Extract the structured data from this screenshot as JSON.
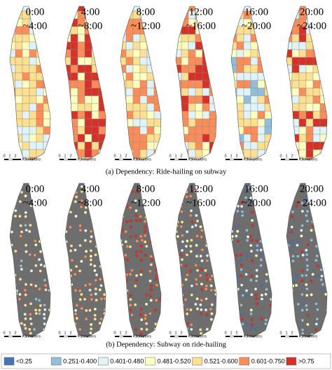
{
  "panels": [
    {
      "start": "0:00",
      "end": "~4:00"
    },
    {
      "start": "4:00",
      "end": "~8:00"
    },
    {
      "start": "8:00",
      "end": "~12:00"
    },
    {
      "start": "12:00",
      "end": "~16:00"
    },
    {
      "start": "16:00",
      "end": "~20:00"
    },
    {
      "start": "20:00",
      "end": "~24:00"
    }
  ],
  "captions": {
    "a": "(a) Dependency: Ride-hailing on subway",
    "b": "(b) Dependency: Subway on ride-hailing"
  },
  "scale": {
    "labels": [
      "0",
      "1",
      "2"
    ],
    "unit": "Kilometers"
  },
  "legend": [
    {
      "label": "<0.25",
      "color": "#4575b4"
    },
    {
      "label": "0.251-0.400",
      "color": "#91bfdb"
    },
    {
      "label": "0.401-0.480",
      "color": "#e0f3f8"
    },
    {
      "label": "0.481-0.520",
      "color": "#ffffbf"
    },
    {
      "label": "0.521-0.600",
      "color": "#fee090"
    },
    {
      "label": "0.601-0.750",
      "color": "#fc8d59"
    },
    {
      "label": ">0.75",
      "color": "#d73027"
    }
  ]
}
